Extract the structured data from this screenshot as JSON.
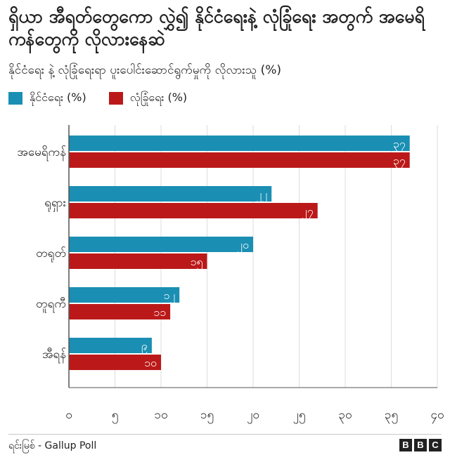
{
  "title": "ရှိယာ အီရတ်တွေကော လွှဲ၍ နိုင်ငံရေးနဲ့ လုံခြုံရေး အတွက် အမေရိကန်တွေကို လိုလားနေဆဲ",
  "subtitle": "နိုင်ငံရေး နဲ့ လုံခြုံရေးရာ ပူးပေါင်းဆောင်ရွက်မှုကို လိုလားသူ (%)",
  "legend": [
    {
      "label": "နိုင်ငံရေး (%)",
      "color": "#1a8fb3"
    },
    {
      "label": "လုံခြုံရေး (%)",
      "color": "#bb1919"
    }
  ],
  "source": "ရင်းမြစ် - Gallup Poll",
  "brand": [
    "B",
    "B",
    "C"
  ],
  "chart_data": {
    "type": "bar",
    "orientation": "horizontal",
    "categories": [
      "အမေရိကန်",
      "ရုရှား",
      "တရုတ်",
      "တူရကီ",
      "အီရန်"
    ],
    "series": [
      {
        "name": "နိုင်ငံရေး (%)",
        "color": "#1a8fb3",
        "values": [
          37,
          22,
          20,
          12,
          9
        ],
        "value_labels": [
          "၃၇",
          "၂၂",
          "၂၀",
          "၁၂",
          "၉"
        ]
      },
      {
        "name": "လုံခြုံရေး (%)",
        "color": "#bb1919",
        "values": [
          37,
          27,
          15,
          11,
          10
        ],
        "value_labels": [
          "၃၇",
          "၂၇",
          "၁၅",
          "၁၁",
          "၁၀"
        ]
      }
    ],
    "xlim": [
      0,
      40
    ],
    "xticks": [
      0,
      5,
      10,
      15,
      20,
      25,
      30,
      35,
      40
    ],
    "xtick_labels": [
      "၀",
      "၅",
      "၁၀",
      "၁၅",
      "၂၀",
      "၂၅",
      "၃၀",
      "၃၅",
      "၄၀"
    ],
    "grid": true
  }
}
